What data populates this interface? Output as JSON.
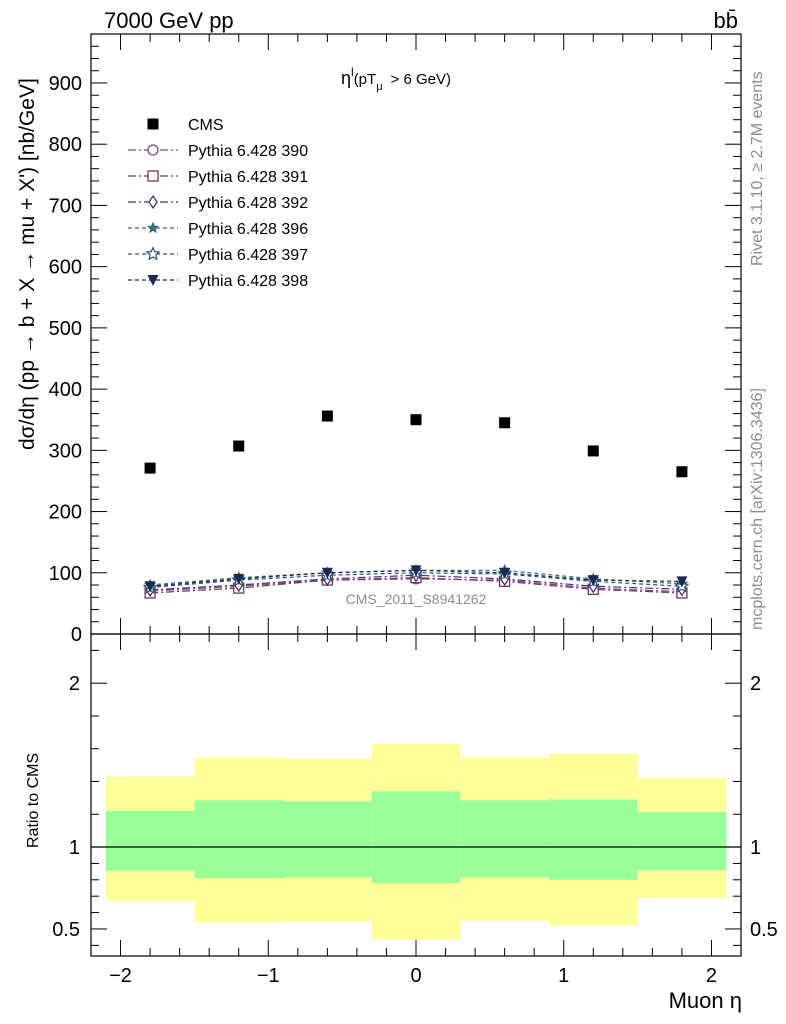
{
  "header": {
    "left": "7000 GeV pp",
    "right": "bb̄",
    "side_top": "Rivet 3.1.10, ≥ 2.7M events",
    "side_bottom": "mcplots.cern.ch [arXiv:1306.3436]",
    "watermark": "CMS_2011_S8941262"
  },
  "chart_data": [
    {
      "type": "scatter",
      "title": "η^l (pT_μ > 6 GeV)",
      "title_parts": {
        "main": "η",
        "sup": "l",
        "open": "(pT",
        "sub": "μ",
        "close": ">  6 GeV)"
      },
      "ylabel": "dσ/dη (pp → b + X → mu + X') [nb/GeV]",
      "xlabel": "",
      "xlim": [
        -2.2,
        2.2
      ],
      "ylim": [
        0,
        980
      ],
      "yticks": [
        0,
        100,
        200,
        300,
        400,
        500,
        600,
        700,
        800,
        900
      ],
      "ytick_labels": [
        "0",
        "100",
        "200",
        "300",
        "400",
        "500",
        "600",
        "700",
        "800",
        "900"
      ],
      "x": [
        -1.8,
        -1.2,
        -0.6,
        0.0,
        0.6,
        1.2,
        1.8
      ],
      "legend_placement": "top-left",
      "series": [
        {
          "name": "CMS",
          "values": [
            271,
            307,
            356,
            350,
            345,
            299,
            265
          ],
          "color": "#000000",
          "marker": "square",
          "dash": ""
        },
        {
          "name": "Pythia 6.428 390",
          "values": [
            70,
            78,
            88,
            90,
            88,
            75,
            69
          ],
          "color": "#7b4a8c",
          "marker": "circle-open",
          "dash": "8,3,2,3"
        },
        {
          "name": "Pythia 6.428 391",
          "values": [
            67,
            75,
            88,
            92,
            86,
            73,
            67
          ],
          "color": "#6e3a52",
          "marker": "square-open",
          "dash": "8,3,2,3"
        },
        {
          "name": "Pythia 6.428 392",
          "values": [
            72,
            80,
            90,
            96,
            90,
            78,
            73
          ],
          "color": "#4a2f80",
          "marker": "diamond-open",
          "dash": "8,3,2,3"
        },
        {
          "name": "Pythia 6.428 396",
          "values": [
            80,
            92,
            100,
            104,
            104,
            90,
            82
          ],
          "color": "#3d6b7a",
          "marker": "star",
          "dash": "4,3"
        },
        {
          "name": "Pythia 6.428 397",
          "values": [
            76,
            88,
            96,
            100,
            98,
            86,
            78
          ],
          "color": "#2e5577",
          "marker": "star-open",
          "dash": "4,3"
        },
        {
          "name": "Pythia 6.428 398",
          "values": [
            78,
            90,
            100,
            104,
            100,
            88,
            86
          ],
          "color": "#1a2a52",
          "marker": "triangle-down",
          "dash": "4,3"
        }
      ]
    },
    {
      "type": "area",
      "ylabel": "Ratio to CMS",
      "xlabel": "Muon η",
      "xlim": [
        -2.2,
        2.2
      ],
      "ylim": [
        0.335,
        2.3
      ],
      "yticks": [
        0.5,
        1,
        2
      ],
      "ytick_labels": [
        "0.5",
        "1",
        "2"
      ],
      "xticks": [
        -2,
        -1,
        0,
        1,
        2
      ],
      "xtick_labels": [
        "−2",
        "−1",
        "0",
        "1",
        "2"
      ],
      "reference_line": 1,
      "bins": [
        {
          "xlo": -2.1,
          "xhi": -1.5,
          "inner": [
            0.855,
            1.22
          ],
          "outer": [
            0.67,
            1.43
          ]
        },
        {
          "xlo": -1.5,
          "xhi": -0.9,
          "inner": [
            0.81,
            1.285
          ],
          "outer": [
            0.54,
            1.545
          ]
        },
        {
          "xlo": -0.9,
          "xhi": -0.3,
          "inner": [
            0.815,
            1.28
          ],
          "outer": [
            0.545,
            1.54
          ]
        },
        {
          "xlo": -0.3,
          "xhi": 0.3,
          "inner": [
            0.78,
            1.34
          ],
          "outer": [
            0.435,
            1.63
          ]
        },
        {
          "xlo": 0.3,
          "xhi": 0.9,
          "inner": [
            0.815,
            1.285
          ],
          "outer": [
            0.55,
            1.545
          ]
        },
        {
          "xlo": 0.9,
          "xhi": 1.5,
          "inner": [
            0.8,
            1.29
          ],
          "outer": [
            0.52,
            1.57
          ]
        },
        {
          "xlo": 1.5,
          "xhi": 2.1,
          "inner": [
            0.86,
            1.215
          ],
          "outer": [
            0.69,
            1.42
          ]
        }
      ],
      "band_colors": {
        "inner": "#99ff99",
        "outer": "#ffff99"
      }
    }
  ]
}
